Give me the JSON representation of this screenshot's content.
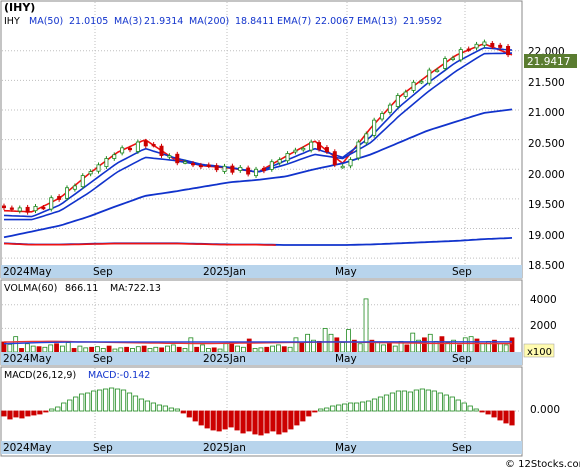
{
  "header": {
    "title": "(IHY)",
    "ticker": "IHY",
    "ma50_label": "MA(50)",
    "ma50_value": "21.0105",
    "ma3_label": "MA(3)",
    "ma3_value": "21.9314",
    "ma200_label": "MA(200)",
    "ma200_value": "18.8411",
    "ema7_label": "EMA(7)",
    "ema7_value": "22.0067",
    "ema13_label": "EMA(13)",
    "ema13_value": "21.9592"
  },
  "price_panel": {
    "yticks": [
      "22.000",
      "21.500",
      "21.000",
      "20.500",
      "20.000",
      "19.500",
      "19.000",
      "18.500"
    ],
    "last_price": "21.9417",
    "xlabels": [
      "2024May",
      "Sep",
      "2025Jan",
      "May",
      "Sep"
    ]
  },
  "volume_panel": {
    "label": "VOLMA(60)",
    "volma_value": "866.11",
    "ma_label": "MA:722.13",
    "yticks": [
      "4000",
      "2000"
    ],
    "multiplier": "x100",
    "xlabels": [
      "2024May",
      "Sep",
      "2025Jan",
      "May",
      "Sep"
    ]
  },
  "macd_panel": {
    "label": "MACD(26,12,9)",
    "macd_label": "MACD:-0.142",
    "ytick": "0.000",
    "xlabels": [
      "2024May",
      "Sep",
      "2025Jan",
      "May",
      "Sep"
    ]
  },
  "watermark": "© 12Stocks.com",
  "colors": {
    "up": "#1f8a1f",
    "down": "#cc0000",
    "ma_blue": "#1133cc",
    "ema_red": "#ee1111",
    "volma_red": "#ee3333",
    "volma_blue": "#2244dd",
    "axis_band": "#b8d4ec",
    "label_box": "#5a7c30",
    "grid": "#bfbfbf"
  },
  "chart_data": [
    {
      "type": "line",
      "title": "(IHY)",
      "x": [
        "2024-04",
        "2024-05",
        "2024-06",
        "2024-07",
        "2024-08",
        "2024-09",
        "2024-10",
        "2024-11",
        "2024-12",
        "2025-01",
        "2025-02",
        "2025-03",
        "2025-04",
        "2025-05",
        "2025-06",
        "2025-07",
        "2025-08",
        "2025-09",
        "2025-10"
      ],
      "series": [
        {
          "name": "Price",
          "values": [
            19.35,
            19.3,
            19.55,
            19.95,
            20.3,
            20.45,
            20.15,
            20.05,
            20.0,
            19.95,
            20.25,
            20.45,
            20.0,
            20.75,
            21.25,
            21.6,
            21.95,
            22.15,
            21.94
          ]
        },
        {
          "name": "MA(3)",
          "values": [
            19.3,
            19.28,
            19.52,
            19.92,
            20.28,
            20.5,
            20.18,
            20.06,
            20.02,
            19.95,
            20.22,
            20.48,
            20.1,
            20.7,
            21.22,
            21.58,
            21.92,
            22.12,
            21.93
          ]
        },
        {
          "name": "EMA(7)",
          "values": [
            19.22,
            19.2,
            19.4,
            19.75,
            20.1,
            20.35,
            20.2,
            20.08,
            20.03,
            19.95,
            20.15,
            20.35,
            20.2,
            20.55,
            21.05,
            21.45,
            21.8,
            22.05,
            22.01
          ]
        },
        {
          "name": "EMA(13)",
          "values": [
            19.15,
            19.15,
            19.3,
            19.6,
            19.95,
            20.2,
            20.15,
            20.07,
            20.03,
            19.95,
            20.08,
            20.25,
            20.18,
            20.45,
            20.9,
            21.3,
            21.65,
            21.95,
            21.96
          ]
        },
        {
          "name": "MA(50)",
          "values": [
            18.85,
            18.95,
            19.05,
            19.2,
            19.38,
            19.55,
            19.62,
            19.7,
            19.78,
            19.82,
            19.88,
            20.0,
            20.1,
            20.25,
            20.45,
            20.65,
            20.8,
            20.95,
            21.01
          ]
        },
        {
          "name": "MA(200)",
          "values": [
            18.75,
            18.73,
            18.73,
            18.74,
            18.75,
            18.75,
            18.75,
            18.74,
            18.73,
            18.73,
            18.72,
            18.72,
            18.72,
            18.73,
            18.75,
            18.77,
            18.79,
            18.82,
            18.84
          ]
        }
      ],
      "ylim": [
        18.4,
        22.35
      ],
      "last_value": 21.9417
    },
    {
      "type": "bar",
      "title": "VOLMA(60)",
      "unit_multiplier": 100,
      "values": [
        850,
        650,
        1300,
        300,
        700,
        500,
        450,
        400,
        600,
        700,
        500,
        800,
        300,
        500,
        350,
        400,
        450,
        300,
        500,
        250,
        350,
        400,
        300,
        450,
        500,
        300,
        400,
        350,
        500,
        600,
        400,
        300,
        1200,
        400,
        600,
        300,
        350,
        250,
        700,
        800,
        500,
        400,
        1100,
        300,
        350,
        400,
        500,
        600,
        450,
        400,
        1200,
        800,
        1500,
        1000,
        900,
        2000,
        1500,
        1200,
        800,
        1900,
        1000,
        700,
        4500,
        1000,
        800,
        600,
        700,
        500,
        900,
        600,
        1600,
        1000,
        1200,
        1500,
        900,
        1300,
        800,
        1000,
        600,
        1200,
        1300,
        1100,
        700,
        900,
        1000,
        700,
        600,
        1200
      ],
      "ma_values": [
        850,
        860,
        870,
        880,
        890,
        900,
        905,
        910,
        900,
        880,
        860,
        850,
        840,
        830,
        820,
        810,
        800,
        790,
        780,
        770,
        760,
        750,
        740,
        740,
        740,
        730,
        720,
        720,
        720,
        730,
        740,
        740,
        750,
        760,
        760,
        770,
        780,
        790,
        800,
        810,
        810,
        820,
        830,
        840,
        850,
        850,
        850,
        840,
        830,
        820,
        810,
        800,
        790,
        780,
        770,
        760,
        750,
        740,
        730,
        730,
        730,
        730,
        730,
        730,
        725,
        725,
        722,
        722,
        722,
        722
      ],
      "volma_values": [
        700,
        720,
        740,
        760,
        780,
        800,
        810,
        820,
        830,
        840,
        850,
        860,
        860,
        860,
        860,
        860,
        860,
        860,
        860,
        860,
        860,
        860,
        860,
        860,
        860,
        860,
        860,
        860,
        860,
        860,
        860,
        860,
        860,
        860,
        860,
        860,
        860,
        860,
        860,
        860,
        860,
        860,
        860,
        860,
        860,
        860,
        860,
        860,
        860,
        860,
        866,
        866,
        866,
        866,
        866,
        866,
        866,
        866,
        866,
        866,
        866,
        866,
        866,
        866,
        866,
        866,
        866,
        866,
        866,
        866
      ],
      "ylim": [
        0,
        5000
      ]
    },
    {
      "type": "bar",
      "title": "MACD(26,12,9)",
      "values": [
        -0.05,
        -0.08,
        -0.06,
        -0.07,
        -0.05,
        -0.04,
        -0.03,
        -0.01,
        0.02,
        0.04,
        0.08,
        0.11,
        0.14,
        0.17,
        0.18,
        0.2,
        0.21,
        0.22,
        0.23,
        0.22,
        0.21,
        0.18,
        0.15,
        0.12,
        0.1,
        0.08,
        0.06,
        0.05,
        0.03,
        0.02,
        -0.02,
        -0.06,
        -0.1,
        -0.14,
        -0.17,
        -0.19,
        -0.2,
        -0.18,
        -0.16,
        -0.19,
        -0.22,
        -0.2,
        -0.23,
        -0.24,
        -0.22,
        -0.2,
        -0.23,
        -0.21,
        -0.18,
        -0.14,
        -0.1,
        -0.05,
        -0.01,
        0.02,
        0.03,
        0.05,
        0.06,
        0.07,
        0.08,
        0.08,
        0.09,
        0.1,
        0.12,
        0.14,
        0.16,
        0.18,
        0.2,
        0.2,
        0.19,
        0.21,
        0.22,
        0.21,
        0.2,
        0.18,
        0.16,
        0.14,
        0.11,
        0.08,
        0.05,
        0.02,
        -0.01,
        -0.03,
        -0.06,
        -0.09,
        -0.12,
        -0.14
      ],
      "last_value": -0.142,
      "ylim": [
        -0.28,
        0.3
      ]
    }
  ]
}
